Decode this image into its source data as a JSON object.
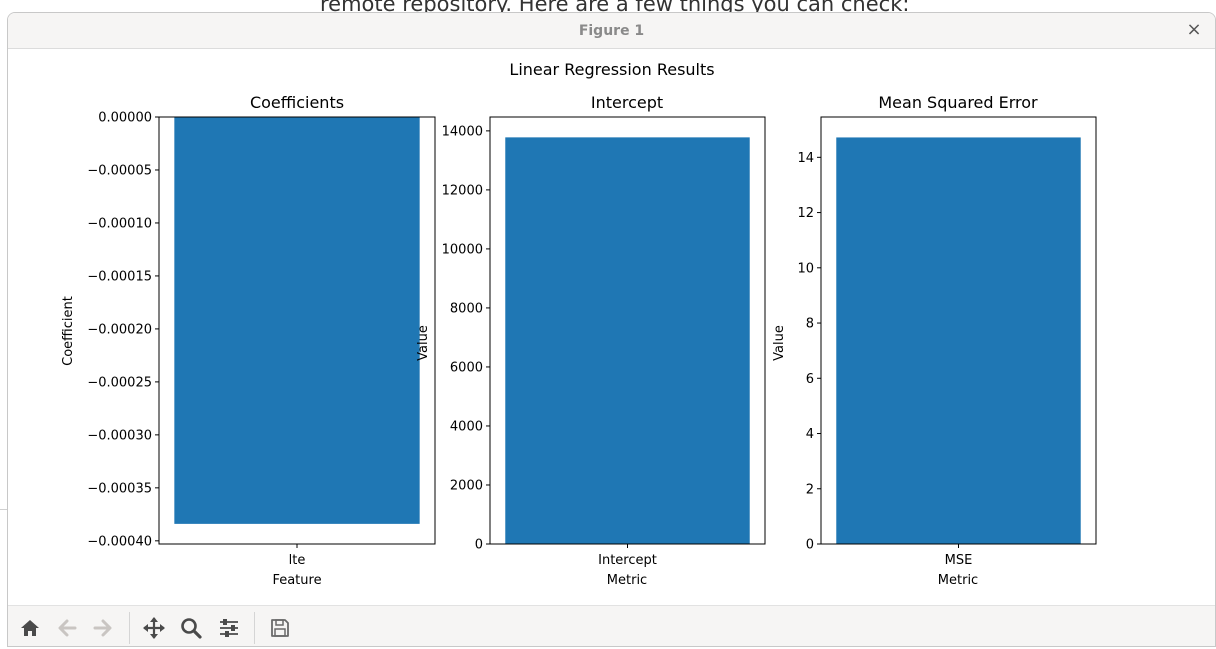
{
  "background": {
    "text": "remote repository. Here are a few things you can check:"
  },
  "window": {
    "title": "Figure 1",
    "close_glyph": "×"
  },
  "toolbar": {
    "buttons": [
      {
        "name": "home-button",
        "icon": "home-icon",
        "enabled": true
      },
      {
        "name": "back-button",
        "icon": "arrow-left-icon",
        "enabled": false
      },
      {
        "name": "forward-button",
        "icon": "arrow-right-icon",
        "enabled": false
      },
      {
        "name": "pan-button",
        "icon": "move-icon",
        "enabled": true
      },
      {
        "name": "zoom-button",
        "icon": "magnifier-icon",
        "enabled": true
      },
      {
        "name": "configure-subplots-button",
        "icon": "sliders-icon",
        "enabled": true
      },
      {
        "name": "save-button",
        "icon": "floppy-disk-icon",
        "enabled": true
      }
    ]
  },
  "colors": {
    "bar": "#1f77b4",
    "disabled_icon": "#c9c5c2",
    "icon": "#4a4a4a"
  },
  "figure": {
    "suptitle": "Linear Regression Results",
    "chart_data": [
      {
        "type": "bar",
        "title": "Coefficients",
        "xlabel": "Feature",
        "ylabel": "Coefficient",
        "categories": [
          "lte"
        ],
        "values": [
          -0.000384
        ],
        "ylim": [
          -0.000403,
          0.0
        ],
        "yticks": [
          0.0,
          -5e-05,
          -0.0001,
          -0.00015,
          -0.0002,
          -0.00025,
          -0.0003,
          -0.00035,
          -0.0004
        ],
        "ytick_labels": [
          "0.00000",
          "−0.00005",
          "−0.00010",
          "−0.00015",
          "−0.00020",
          "−0.00025",
          "−0.00030",
          "−0.00035",
          "−0.00040"
        ],
        "grid": false
      },
      {
        "type": "bar",
        "title": "Intercept",
        "xlabel": "Metric",
        "ylabel": "Value",
        "categories": [
          "Intercept"
        ],
        "values": [
          13780
        ],
        "ylim": [
          0,
          14470
        ],
        "yticks": [
          0,
          2000,
          4000,
          6000,
          8000,
          10000,
          12000,
          14000
        ],
        "ytick_labels": [
          "0",
          "2000",
          "4000",
          "6000",
          "8000",
          "10000",
          "12000",
          "14000"
        ],
        "grid": false
      },
      {
        "type": "bar",
        "title": "Mean Squared Error",
        "xlabel": "Metric",
        "ylabel": "Value",
        "categories": [
          "MSE"
        ],
        "values": [
          14.72
        ],
        "ylim": [
          0,
          15.46
        ],
        "yticks": [
          0,
          2,
          4,
          6,
          8,
          10,
          12,
          14
        ],
        "ytick_labels": [
          "0",
          "2",
          "4",
          "6",
          "8",
          "10",
          "12",
          "14"
        ],
        "grid": false
      }
    ]
  }
}
